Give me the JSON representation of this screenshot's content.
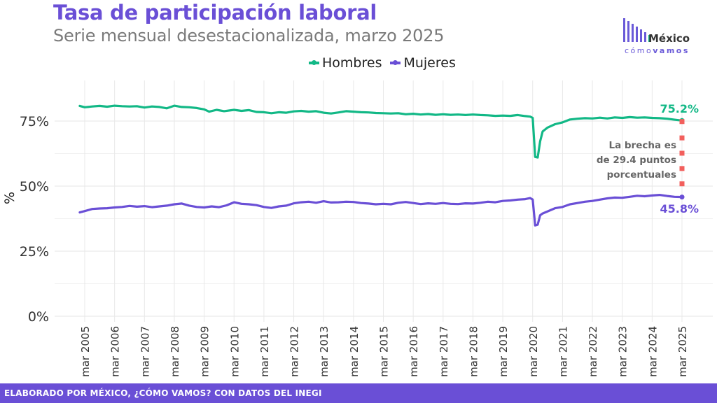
{
  "header": {
    "title": "Tasa de participación laboral",
    "subtitle": "Serie mensual desestacionalizada, marzo 2025"
  },
  "logo": {
    "word": "México",
    "sub_light": "cómo",
    "sub_bold": "vamos"
  },
  "footer": {
    "text": "ELABORADO POR MÉXICO, ¿CÓMO VAMOS? CON DATOS DEL INEGI"
  },
  "colors": {
    "hombres": "#12b886",
    "mujeres": "#6a4fd6",
    "gap_marker": "#f25f5c",
    "annotation": "#666666"
  },
  "chart_data": {
    "type": "line",
    "ylabel": "%",
    "xlabel": "",
    "ylim": [
      0,
      85
    ],
    "y_ticks": [
      0,
      25,
      50,
      75
    ],
    "y_tick_labels": [
      "0%",
      "25%",
      "50%",
      "75%"
    ],
    "x_tick_labels": [
      "mar 2005",
      "mar 2006",
      "mar 2007",
      "mar 2008",
      "mar 2009",
      "mar 2010",
      "mar 2011",
      "mar 2012",
      "mar 2013",
      "mar 2014",
      "mar 2015",
      "mar 2016",
      "mar 2017",
      "mar 2018",
      "mar 2019",
      "mar 2020",
      "mar 2021",
      "mar 2022",
      "mar 2023",
      "mar 2024",
      "mar 2025"
    ],
    "grid": true,
    "legend_position": "top",
    "series": [
      {
        "name": "Hombres",
        "color": "#12b886",
        "points": [
          [
            "2005-01",
            80.8
          ],
          [
            "2005-03",
            80.3
          ],
          [
            "2005-06",
            80.6
          ],
          [
            "2005-09",
            80.8
          ],
          [
            "2005-12",
            80.5
          ],
          [
            "2006-03",
            80.9
          ],
          [
            "2006-06",
            80.7
          ],
          [
            "2006-09",
            80.6
          ],
          [
            "2006-12",
            80.7
          ],
          [
            "2007-03",
            80.2
          ],
          [
            "2007-06",
            80.6
          ],
          [
            "2007-09",
            80.4
          ],
          [
            "2007-12",
            79.9
          ],
          [
            "2008-03",
            80.9
          ],
          [
            "2008-06",
            80.4
          ],
          [
            "2008-09",
            80.3
          ],
          [
            "2008-12",
            80.0
          ],
          [
            "2009-03",
            79.5
          ],
          [
            "2009-05",
            78.6
          ],
          [
            "2009-08",
            79.3
          ],
          [
            "2009-11",
            78.8
          ],
          [
            "2010-03",
            79.3
          ],
          [
            "2010-06",
            78.9
          ],
          [
            "2010-09",
            79.2
          ],
          [
            "2010-12",
            78.5
          ],
          [
            "2011-03",
            78.4
          ],
          [
            "2011-06",
            78.0
          ],
          [
            "2011-09",
            78.4
          ],
          [
            "2011-12",
            78.2
          ],
          [
            "2012-03",
            78.7
          ],
          [
            "2012-06",
            78.9
          ],
          [
            "2012-09",
            78.6
          ],
          [
            "2012-12",
            78.8
          ],
          [
            "2013-03",
            78.2
          ],
          [
            "2013-06",
            77.9
          ],
          [
            "2013-09",
            78.3
          ],
          [
            "2013-12",
            78.8
          ],
          [
            "2014-03",
            78.6
          ],
          [
            "2014-06",
            78.4
          ],
          [
            "2014-09",
            78.3
          ],
          [
            "2014-12",
            78.1
          ],
          [
            "2015-03",
            78.0
          ],
          [
            "2015-06",
            77.9
          ],
          [
            "2015-09",
            78.0
          ],
          [
            "2015-12",
            77.6
          ],
          [
            "2016-03",
            77.8
          ],
          [
            "2016-06",
            77.5
          ],
          [
            "2016-09",
            77.7
          ],
          [
            "2016-12",
            77.4
          ],
          [
            "2017-03",
            77.6
          ],
          [
            "2017-06",
            77.4
          ],
          [
            "2017-09",
            77.5
          ],
          [
            "2017-12",
            77.3
          ],
          [
            "2018-03",
            77.5
          ],
          [
            "2018-06",
            77.3
          ],
          [
            "2018-09",
            77.2
          ],
          [
            "2018-12",
            77.0
          ],
          [
            "2019-03",
            77.1
          ],
          [
            "2019-06",
            77.0
          ],
          [
            "2019-09",
            77.3
          ],
          [
            "2019-12",
            76.9
          ],
          [
            "2020-02",
            76.7
          ],
          [
            "2020-03",
            76.2
          ],
          [
            "2020-04",
            61.2
          ],
          [
            "2020-05",
            61.0
          ],
          [
            "2020-06",
            67.2
          ],
          [
            "2020-07",
            71.0
          ],
          [
            "2020-09",
            72.5
          ],
          [
            "2020-12",
            73.8
          ],
          [
            "2021-03",
            74.5
          ],
          [
            "2021-06",
            75.6
          ],
          [
            "2021-09",
            75.9
          ],
          [
            "2021-12",
            76.1
          ],
          [
            "2022-03",
            76.0
          ],
          [
            "2022-06",
            76.3
          ],
          [
            "2022-09",
            76.0
          ],
          [
            "2022-12",
            76.4
          ],
          [
            "2023-03",
            76.2
          ],
          [
            "2023-06",
            76.5
          ],
          [
            "2023-09",
            76.3
          ],
          [
            "2023-12",
            76.4
          ],
          [
            "2024-03",
            76.2
          ],
          [
            "2024-06",
            76.1
          ],
          [
            "2024-09",
            75.9
          ],
          [
            "2024-12",
            75.5
          ],
          [
            "2025-03",
            75.2
          ]
        ],
        "end_label": "75.2%"
      },
      {
        "name": "Mujeres",
        "color": "#6a4fd6",
        "points": [
          [
            "2005-01",
            39.9
          ],
          [
            "2005-03",
            40.4
          ],
          [
            "2005-06",
            41.2
          ],
          [
            "2005-09",
            41.4
          ],
          [
            "2005-12",
            41.5
          ],
          [
            "2006-03",
            41.8
          ],
          [
            "2006-06",
            42.0
          ],
          [
            "2006-09",
            42.4
          ],
          [
            "2006-12",
            42.1
          ],
          [
            "2007-03",
            42.3
          ],
          [
            "2007-06",
            41.9
          ],
          [
            "2007-09",
            42.2
          ],
          [
            "2007-12",
            42.5
          ],
          [
            "2008-03",
            43.0
          ],
          [
            "2008-06",
            43.3
          ],
          [
            "2008-09",
            42.5
          ],
          [
            "2008-12",
            42.0
          ],
          [
            "2009-03",
            41.8
          ],
          [
            "2009-06",
            42.2
          ],
          [
            "2009-09",
            41.9
          ],
          [
            "2009-12",
            42.6
          ],
          [
            "2010-03",
            43.8
          ],
          [
            "2010-06",
            43.2
          ],
          [
            "2010-09",
            43.0
          ],
          [
            "2010-12",
            42.7
          ],
          [
            "2011-03",
            42.0
          ],
          [
            "2011-06",
            41.6
          ],
          [
            "2011-09",
            42.2
          ],
          [
            "2011-12",
            42.5
          ],
          [
            "2012-03",
            43.4
          ],
          [
            "2012-06",
            43.8
          ],
          [
            "2012-09",
            44.0
          ],
          [
            "2012-12",
            43.6
          ],
          [
            "2013-03",
            44.2
          ],
          [
            "2013-06",
            43.7
          ],
          [
            "2013-09",
            43.8
          ],
          [
            "2013-12",
            44.0
          ],
          [
            "2014-03",
            43.9
          ],
          [
            "2014-06",
            43.5
          ],
          [
            "2014-09",
            43.3
          ],
          [
            "2014-12",
            43.0
          ],
          [
            "2015-03",
            43.2
          ],
          [
            "2015-06",
            43.0
          ],
          [
            "2015-09",
            43.6
          ],
          [
            "2015-12",
            43.9
          ],
          [
            "2016-03",
            43.5
          ],
          [
            "2016-06",
            43.1
          ],
          [
            "2016-09",
            43.4
          ],
          [
            "2016-12",
            43.2
          ],
          [
            "2017-03",
            43.5
          ],
          [
            "2017-06",
            43.2
          ],
          [
            "2017-09",
            43.1
          ],
          [
            "2017-12",
            43.4
          ],
          [
            "2018-03",
            43.3
          ],
          [
            "2018-06",
            43.6
          ],
          [
            "2018-09",
            44.0
          ],
          [
            "2018-12",
            43.8
          ],
          [
            "2019-03",
            44.3
          ],
          [
            "2019-06",
            44.5
          ],
          [
            "2019-09",
            44.8
          ],
          [
            "2019-12",
            45.0
          ],
          [
            "2020-02",
            45.4
          ],
          [
            "2020-03",
            44.8
          ],
          [
            "2020-04",
            34.9
          ],
          [
            "2020-05",
            35.2
          ],
          [
            "2020-06",
            38.8
          ],
          [
            "2020-07",
            39.5
          ],
          [
            "2020-09",
            40.3
          ],
          [
            "2020-12",
            41.5
          ],
          [
            "2021-03",
            42.0
          ],
          [
            "2021-06",
            43.0
          ],
          [
            "2021-09",
            43.5
          ],
          [
            "2021-12",
            44.0
          ],
          [
            "2022-03",
            44.3
          ],
          [
            "2022-06",
            44.8
          ],
          [
            "2022-09",
            45.3
          ],
          [
            "2022-12",
            45.6
          ],
          [
            "2023-03",
            45.5
          ],
          [
            "2023-06",
            45.9
          ],
          [
            "2023-09",
            46.3
          ],
          [
            "2023-12",
            46.1
          ],
          [
            "2024-03",
            46.4
          ],
          [
            "2024-06",
            46.6
          ],
          [
            "2024-09",
            46.2
          ],
          [
            "2024-12",
            45.9
          ],
          [
            "2025-03",
            45.8
          ]
        ],
        "end_label": "45.8%"
      }
    ],
    "annotation": {
      "lines": [
        "La brecha es",
        "de 29.4 puntos",
        "porcentuales"
      ]
    }
  }
}
